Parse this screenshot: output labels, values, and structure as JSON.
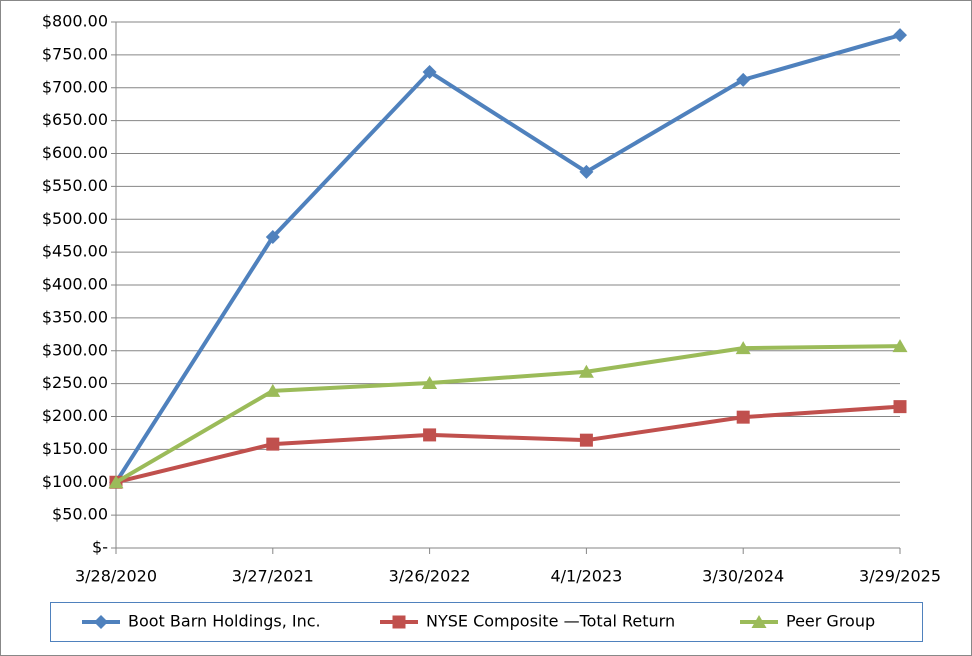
{
  "chart_data": {
    "type": "line",
    "categories": [
      "3/28/2020",
      "3/27/2021",
      "3/26/2022",
      "4/1/2023",
      "3/30/2024",
      "3/29/2025"
    ],
    "series": [
      {
        "name": "Boot Barn Holdings, Inc.",
        "color": "#4f81bd",
        "marker": "diamond",
        "values": [
          100,
          473,
          724,
          572,
          712,
          780
        ]
      },
      {
        "name": "NYSE Composite —Total  Return",
        "color": "#c0504d",
        "marker": "square",
        "values": [
          100,
          158,
          172,
          164,
          199,
          215
        ]
      },
      {
        "name": "Peer Group",
        "color": "#9bbb59",
        "marker": "triangle",
        "values": [
          100,
          239,
          251,
          268,
          304,
          307
        ]
      }
    ],
    "ylim": [
      0,
      800
    ],
    "yticks": [
      {
        "value": 0,
        "label": "$-"
      },
      {
        "value": 50,
        "label": "$50.00"
      },
      {
        "value": 100,
        "label": "$100.00"
      },
      {
        "value": 150,
        "label": "$150.00"
      },
      {
        "value": 200,
        "label": "$200.00"
      },
      {
        "value": 250,
        "label": "$250.00"
      },
      {
        "value": 300,
        "label": "$300.00"
      },
      {
        "value": 350,
        "label": "$350.00"
      },
      {
        "value": 400,
        "label": "$400.00"
      },
      {
        "value": 450,
        "label": "$450.00"
      },
      {
        "value": 500,
        "label": "$500.00"
      },
      {
        "value": 550,
        "label": "$550.00"
      },
      {
        "value": 600,
        "label": "$600.00"
      },
      {
        "value": 650,
        "label": "$650.00"
      },
      {
        "value": 700,
        "label": "$700.00"
      },
      {
        "value": 750,
        "label": "$750.00"
      },
      {
        "value": 800,
        "label": "$800.00"
      }
    ],
    "grid": true,
    "legend": "bottom"
  }
}
